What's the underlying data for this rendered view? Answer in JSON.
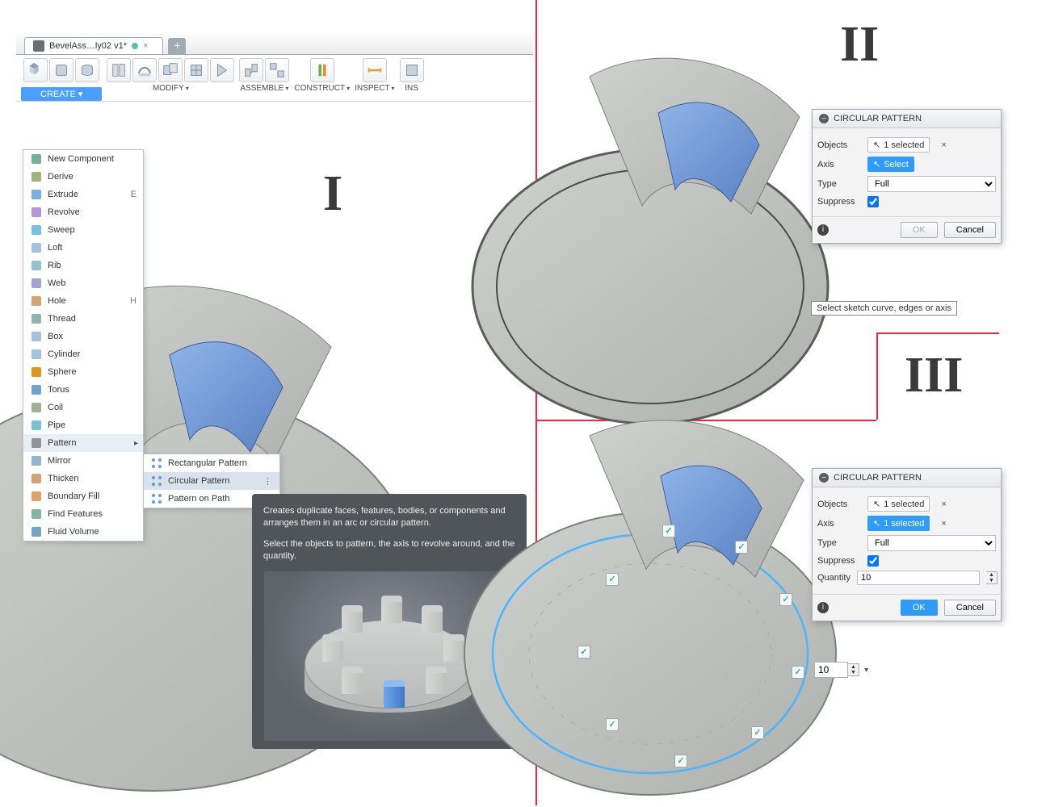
{
  "tab": {
    "title": "BevelAss…ly02 v1*"
  },
  "toolbar": {
    "create": "CREATE ▾",
    "modify": "MODIFY",
    "assemble": "ASSEMBLE",
    "construct": "CONSTRUCT",
    "inspect": "INSPECT",
    "insert": "INS"
  },
  "menu": {
    "items": [
      {
        "label": "New Component"
      },
      {
        "label": "Derive"
      },
      {
        "label": "Extrude",
        "shortcut": "E"
      },
      {
        "label": "Revolve"
      },
      {
        "label": "Sweep"
      },
      {
        "label": "Loft"
      },
      {
        "label": "Rib"
      },
      {
        "label": "Web"
      },
      {
        "label": "Hole",
        "shortcut": "H"
      },
      {
        "label": "Thread"
      },
      {
        "label": "Box"
      },
      {
        "label": "Cylinder"
      },
      {
        "label": "Sphere"
      },
      {
        "label": "Torus"
      },
      {
        "label": "Coil"
      },
      {
        "label": "Pipe"
      },
      {
        "label": "Pattern",
        "sub": true
      },
      {
        "label": "Mirror"
      },
      {
        "label": "Thicken"
      },
      {
        "label": "Boundary Fill"
      },
      {
        "label": "Find Features"
      },
      {
        "label": "Fluid Volume"
      }
    ],
    "sub": [
      {
        "label": "Rectangular Pattern"
      },
      {
        "label": "Circular Pattern",
        "sel": true
      },
      {
        "label": "Pattern on Path"
      }
    ]
  },
  "tooltip": {
    "p1": "Creates duplicate faces, features, bodies, or components and arranges them in an arc or circular pattern.",
    "p2": "Select the objects to pattern, the axis to revolve around, and the quantity."
  },
  "dialog": {
    "title": "CIRCULAR PATTERN",
    "rows": {
      "objects": "Objects",
      "axis": "Axis",
      "type": "Type",
      "suppress": "Suppress",
      "quantity": "Quantity"
    },
    "objVal": "1 selected",
    "axisSelect": "Select",
    "axisSelected": "1 selected",
    "typeVal": "Full",
    "qtyVal": "10",
    "floatVal": "10",
    "ok": "OK",
    "cancel": "Cancel"
  },
  "hint": "Select sketch curve, edges or axis",
  "colors": {
    "accent": "#2f9bff",
    "part_body": "#b8bbb8",
    "part_blue": "#6693d6",
    "divider": "#f24444"
  }
}
